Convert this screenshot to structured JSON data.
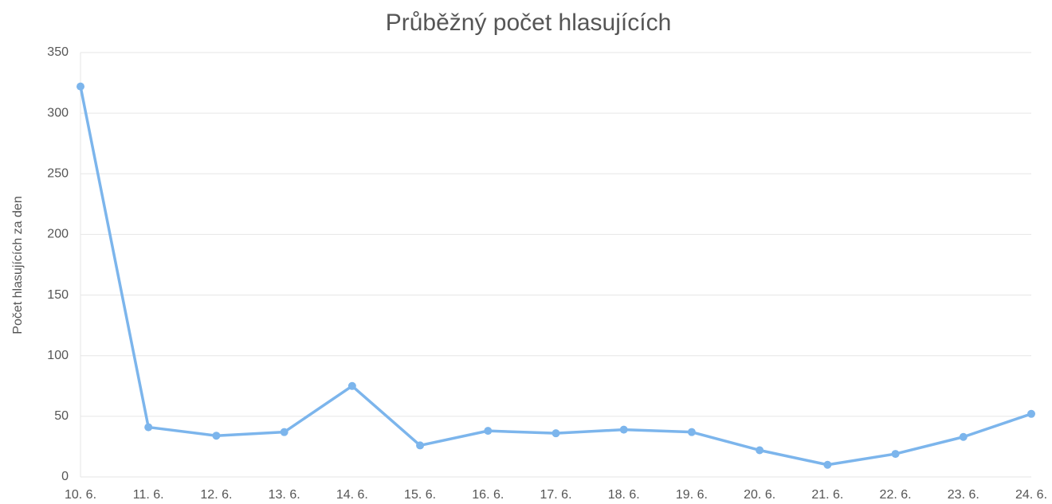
{
  "chart_data": {
    "type": "line",
    "title": "Průběžný počet hlasujících",
    "y_label": "Počet hlasujících za den",
    "categories": [
      "10. 6.",
      "11. 6.",
      "12. 6.",
      "13. 6.",
      "14. 6.",
      "15. 6.",
      "16. 6.",
      "17. 6.",
      "18. 6.",
      "19. 6.",
      "20. 6.",
      "21. 6.",
      "22. 6.",
      "23. 6.",
      "24. 6."
    ],
    "values": [
      322,
      41,
      34,
      37,
      75,
      26,
      38,
      36,
      39,
      37,
      22,
      10,
      19,
      33,
      52
    ],
    "color": "#7cb5ec",
    "ylim": [
      0,
      350
    ],
    "yticks": [
      0,
      50,
      100,
      150,
      200,
      250,
      300,
      350
    ],
    "grid": true
  }
}
